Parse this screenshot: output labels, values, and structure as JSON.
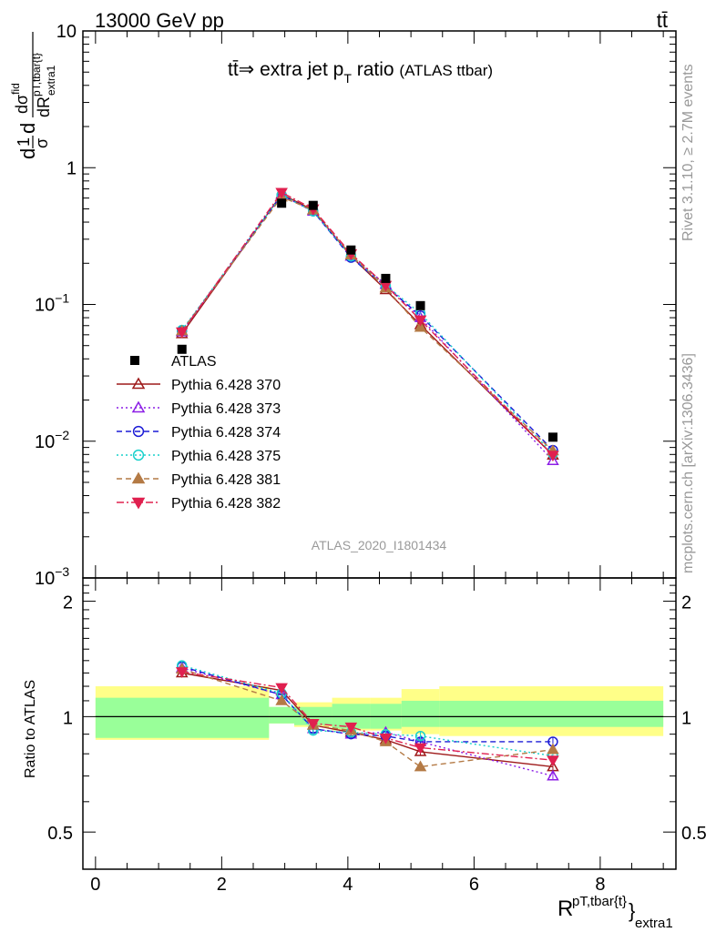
{
  "header": {
    "left": "13000 GeV pp",
    "right": "tt̄"
  },
  "colors": {
    "band_inner": "#99ff99",
    "band_outer": "#ffff88",
    "data": "#000000",
    "watermark": "#999999"
  },
  "title": {
    "main": "tt̄⇒ extra jet p",
    "sub": "T",
    "tail": " ratio",
    "small": "(ATLAS ttbar)"
  },
  "side_text": {
    "rivet": "Rivet 3.1.10, ≥ 2.7M events",
    "mcplots": "mcplots.cern.ch [arXiv:1306.3436]"
  },
  "analysis_id": "ATLAS_2020_I1801434",
  "ylabel_main": {
    "num": "dσ",
    "num_sup": "fid",
    "den": "dR",
    "den_sup": "pT,tbar{t}",
    "den_sub": "extra1",
    "prefix_num": "1",
    "prefix_den": "σ",
    "d": "d"
  },
  "ylabel_ratio": "Ratio to ATLAS",
  "xlabel": {
    "base": "R",
    "sup": "pT,tbar{t}",
    "sub": "extra1",
    "close": "}"
  },
  "chart_data": {
    "type": "line",
    "x": [
      1.37,
      2.95,
      3.45,
      4.05,
      4.6,
      5.15,
      7.25
    ],
    "x_edges": [
      0,
      2.75,
      3.15,
      3.75,
      4.35,
      4.85,
      5.45,
      9.0
    ],
    "xlim": [
      -0.2,
      9.2
    ],
    "main_ylim": [
      0.001,
      10
    ],
    "main_yscale": "log",
    "main_yticks": [
      {
        "v": 10,
        "label": "10"
      },
      {
        "v": 1,
        "label": "1"
      },
      {
        "v": 0.1,
        "base": "10",
        "exp": "−1"
      },
      {
        "v": 0.01,
        "base": "10",
        "exp": "−2"
      },
      {
        "v": 0.001,
        "base": "10",
        "exp": "−3"
      }
    ],
    "ratio_ylim": [
      0.4,
      2.3
    ],
    "ratio_yscale": "log",
    "ratio_yticks": [
      {
        "v": 0.5,
        "label": "0.5"
      },
      {
        "v": 1,
        "label": "1"
      },
      {
        "v": 2,
        "label": "2"
      }
    ],
    "xticks": [
      {
        "v": 0,
        "label": "0"
      },
      {
        "v": 2,
        "label": "2"
      },
      {
        "v": 4,
        "label": "4"
      },
      {
        "v": 6,
        "label": "6"
      },
      {
        "v": 8,
        "label": "8"
      }
    ],
    "data_series": {
      "name": "ATLAS",
      "values": [
        0.047,
        0.55,
        0.53,
        0.25,
        0.155,
        0.098,
        0.0107
      ]
    },
    "band_inner": [
      [
        0.88,
        1.12
      ],
      [
        0.96,
        1.06
      ],
      [
        0.95,
        1.06
      ],
      [
        0.93,
        1.08
      ],
      [
        0.93,
        1.08
      ],
      [
        0.94,
        1.1
      ],
      [
        0.94,
        1.1
      ]
    ],
    "band_outer": [
      [
        0.87,
        1.2
      ],
      [
        0.96,
        1.06
      ],
      [
        0.94,
        1.09
      ],
      [
        0.92,
        1.12
      ],
      [
        0.92,
        1.12
      ],
      [
        0.9,
        1.18
      ],
      [
        0.89,
        1.2
      ]
    ],
    "series": [
      {
        "name": "Pythia 6.428 370",
        "color": "#9e1a1a",
        "dash": "",
        "marker": "tri-up-open",
        "values": [
          0.061,
          0.64,
          0.49,
          0.225,
          0.128,
          0.071,
          0.0079
        ],
        "ratio": [
          1.3,
          1.17,
          0.95,
          0.91,
          0.87,
          0.81,
          0.74
        ]
      },
      {
        "name": "Pythia 6.428 373",
        "color": "#8c1ee6",
        "dash": "2,3",
        "marker": "tri-up-open",
        "values": [
          0.063,
          0.63,
          0.48,
          0.225,
          0.14,
          0.08,
          0.0072
        ],
        "ratio": [
          1.34,
          1.14,
          0.93,
          0.9,
          0.91,
          0.86,
          0.7
        ]
      },
      {
        "name": "Pythia 6.428 374",
        "color": "#1c1cd6",
        "dash": "6,4",
        "marker": "circle-open",
        "values": [
          0.064,
          0.63,
          0.48,
          0.22,
          0.135,
          0.083,
          0.0086
        ],
        "ratio": [
          1.35,
          1.14,
          0.93,
          0.9,
          0.89,
          0.86,
          0.86
        ]
      },
      {
        "name": "Pythia 6.428 375",
        "color": "#19d1cc",
        "dash": "2,3",
        "marker": "circle-open",
        "values": [
          0.065,
          0.63,
          0.48,
          0.225,
          0.138,
          0.086,
          0.0081
        ],
        "ratio": [
          1.36,
          1.15,
          0.92,
          0.91,
          0.9,
          0.89,
          0.79
        ]
      },
      {
        "name": "Pythia 6.428 381",
        "color": "#b47a45",
        "dash": "6,4",
        "marker": "tri-up-filled",
        "values": [
          0.064,
          0.61,
          0.49,
          0.23,
          0.132,
          0.068,
          0.0085
        ],
        "ratio": [
          1.33,
          1.1,
          0.95,
          0.92,
          0.86,
          0.74,
          0.82
        ]
      },
      {
        "name": "Pythia 6.428 382",
        "color": "#e0204f",
        "dash": "8,3,2,3",
        "marker": "tri-down-filled",
        "values": [
          0.063,
          0.66,
          0.5,
          0.235,
          0.138,
          0.077,
          0.0079
        ],
        "ratio": [
          1.31,
          1.19,
          0.96,
          0.94,
          0.88,
          0.83,
          0.77
        ]
      }
    ]
  }
}
